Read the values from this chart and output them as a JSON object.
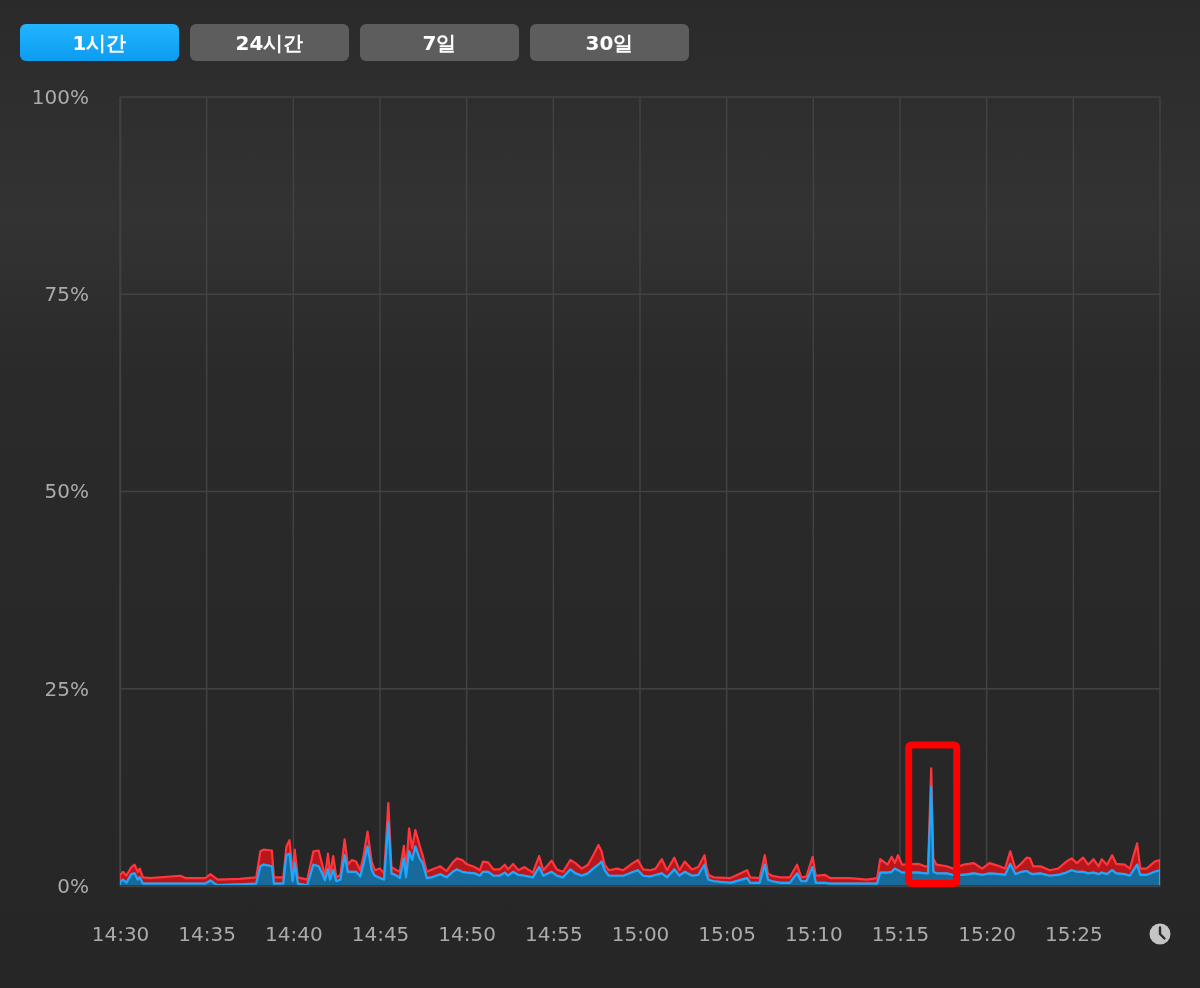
{
  "chart_data": {
    "type": "area",
    "stacked": true,
    "annotations": [
      "1시간",
      "24시간",
      "7일",
      "30일"
    ],
    "xlim": [
      14.5,
      15.5
    ],
    "xticks": [
      {
        "value": 14.5,
        "label": "14:30"
      },
      {
        "value": 14.5833,
        "label": "14:35"
      },
      {
        "value": 14.6667,
        "label": "14:40"
      },
      {
        "value": 14.75,
        "label": "14:45"
      },
      {
        "value": 14.8333,
        "label": "14:50"
      },
      {
        "value": 14.9167,
        "label": "14:55"
      },
      {
        "value": 15,
        "label": "15:00"
      },
      {
        "value": 15.0833,
        "label": "15:05"
      },
      {
        "value": 15.1667,
        "label": "15:10"
      },
      {
        "value": 15.25,
        "label": "15:15"
      },
      {
        "value": 15.3333,
        "label": "15:20"
      },
      {
        "value": 15.4167,
        "label": "15:25"
      },
      {
        "value": 15.5,
        "label": null
      }
    ],
    "ylim": [
      0,
      100
    ],
    "yticks": [
      {
        "value": 0,
        "label": "0%"
      },
      {
        "value": 25,
        "label": "25%"
      },
      {
        "value": 50,
        "label": "50%"
      },
      {
        "value": 75,
        "label": "75%"
      },
      {
        "value": 100,
        "label": "100%"
      }
    ],
    "grid": true,
    "x": [
      14.5,
      14.503,
      14.506,
      14.511,
      14.514,
      14.517,
      14.519,
      14.522,
      14.529,
      14.558,
      14.563,
      14.582,
      14.587,
      14.591,
      14.594,
      14.615,
      14.631,
      14.635,
      14.638,
      14.646,
      14.648,
      14.657,
      14.66,
      14.663,
      14.666,
      14.668,
      14.671,
      14.68,
      14.686,
      14.691,
      14.695,
      14.697,
      14.7,
      14.702,
      14.705,
      14.708,
      14.712,
      14.716,
      14.719,
      14.723,
      14.727,
      14.731,
      14.734,
      14.738,
      14.742,
      14.745,
      14.75,
      14.754,
      14.758,
      14.761,
      14.766,
      14.769,
      14.773,
      14.775,
      14.778,
      14.781,
      14.784,
      14.788,
      14.791,
      14.795,
      14.8,
      14.808,
      14.814,
      14.82,
      14.824,
      14.829,
      14.833,
      14.841,
      14.846,
      14.849,
      14.854,
      14.859,
      14.865,
      14.87,
      14.873,
      14.878,
      14.883,
      14.889,
      14.897,
      14.903,
      14.907,
      14.915,
      14.92,
      14.926,
      14.933,
      14.938,
      14.944,
      14.95,
      14.955,
      14.96,
      14.963,
      14.966,
      14.97,
      14.978,
      14.984,
      14.992,
      14.998,
      15.003,
      15.01,
      15.015,
      15.021,
      15.026,
      15.033,
      15.038,
      15.043,
      15.05,
      15.056,
      15.062,
      15.064,
      15.066,
      15.071,
      15.087,
      15.103,
      15.106,
      15.115,
      15.12,
      15.123,
      15.127,
      15.135,
      15.144,
      15.151,
      15.155,
      15.16,
      15.166,
      15.169,
      15.178,
      15.183,
      15.202,
      15.218,
      15.228,
      15.231,
      15.238,
      15.242,
      15.245,
      15.248,
      15.252,
      15.268,
      15.274,
      15.277,
      15.28,
      15.282,
      15.285,
      15.295,
      15.301,
      15.311,
      15.321,
      15.329,
      15.336,
      15.346,
      15.351,
      15.356,
      15.361,
      15.367,
      15.372,
      15.375,
      15.378,
      15.385,
      15.394,
      15.402,
      15.41,
      15.415,
      15.42,
      15.426,
      15.431,
      15.436,
      15.441,
      15.444,
      15.449,
      15.454,
      15.458,
      15.466,
      15.471,
      15.478,
      15.481,
      15.487,
      15.495,
      15.5
    ],
    "series": [
      {
        "color": "#186a9b",
        "values": [
          0.5,
          0.8,
          0.4,
          1.5,
          1.6,
          0.8,
          1.1,
          0.3,
          0.3,
          0.3,
          0.3,
          0.3,
          0.7,
          0.3,
          0.1,
          0.2,
          0.3,
          2.5,
          2.7,
          2.5,
          0.3,
          0.3,
          3.9,
          4.1,
          0.6,
          2.9,
          0.3,
          0.1,
          2.7,
          2.5,
          1.4,
          0.7,
          2.1,
          0.8,
          2.0,
          0.6,
          0.8,
          3.9,
          1.8,
          1.8,
          1.8,
          1.2,
          2.7,
          5.0,
          2.0,
          1.3,
          1.0,
          0.8,
          8.1,
          1.6,
          1.3,
          1.0,
          3.5,
          1.1,
          4.4,
          3.3,
          5.0,
          3.5,
          2.9,
          1.0,
          1.1,
          1.5,
          1.1,
          1.8,
          2.1,
          1.8,
          1.7,
          1.6,
          1.3,
          1.8,
          1.8,
          1.3,
          1.3,
          1.7,
          1.3,
          1.8,
          1.4,
          1.3,
          1.1,
          2.4,
          1.3,
          1.8,
          1.3,
          1.1,
          2.1,
          1.6,
          1.3,
          1.6,
          2.2,
          2.7,
          3.1,
          2.0,
          1.3,
          1.3,
          1.3,
          1.7,
          2.0,
          1.3,
          1.2,
          1.4,
          1.6,
          1.1,
          2.1,
          1.3,
          1.8,
          1.3,
          1.4,
          2.7,
          1.4,
          0.8,
          0.6,
          0.4,
          1.0,
          0.4,
          0.4,
          2.7,
          0.8,
          0.6,
          0.4,
          0.4,
          1.6,
          0.6,
          0.6,
          2.4,
          0.4,
          0.4,
          0.3,
          0.3,
          0.3,
          0.3,
          1.7,
          1.7,
          1.8,
          2.2,
          2.0,
          1.7,
          1.7,
          1.6,
          1.6,
          12.6,
          1.8,
          1.6,
          1.6,
          1.4,
          1.4,
          1.6,
          1.4,
          1.6,
          1.5,
          1.4,
          2.8,
          1.5,
          1.8,
          1.9,
          1.6,
          1.5,
          1.6,
          1.3,
          1.4,
          1.7,
          2.0,
          1.8,
          1.8,
          1.6,
          1.7,
          1.5,
          1.7,
          1.5,
          2.0,
          1.6,
          1.5,
          1.3,
          2.7,
          1.4,
          1.4,
          1.8,
          2.0
        ]
      },
      {
        "color": "#b8171c",
        "values": [
          0.9,
          1.0,
          0.9,
          0.9,
          1.1,
          1.0,
          1.1,
          0.8,
          0.7,
          1.0,
          0.7,
          0.7,
          0.8,
          0.8,
          0.7,
          0.7,
          0.8,
          1.9,
          1.9,
          2.0,
          0.8,
          0.8,
          1.1,
          1.7,
          0.8,
          1.7,
          0.8,
          0.7,
          1.7,
          2.0,
          1.0,
          0.4,
          2.0,
          0.6,
          1.8,
          0.5,
          0.6,
          2.0,
          0.9,
          1.5,
          1.3,
          0.8,
          1.0,
          1.9,
          1.1,
          0.7,
          1.2,
          0.8,
          2.4,
          0.8,
          0.7,
          0.8,
          1.6,
          0.9,
          2.9,
          1.5,
          2.1,
          1.7,
          1.0,
          0.8,
          1.0,
          1.0,
          0.8,
          1.2,
          1.4,
          1.5,
          1.1,
          0.8,
          0.7,
          1.3,
          1.2,
          0.8,
          0.8,
          1.0,
          0.8,
          1.0,
          0.6,
          1.1,
          0.6,
          1.4,
          0.7,
          1.4,
          0.8,
          0.7,
          1.2,
          1.3,
          0.9,
          1.1,
          1.7,
          2.5,
          1.3,
          0.7,
          0.7,
          0.9,
          0.7,
          1.1,
          1.3,
          0.8,
          0.8,
          0.8,
          1.8,
          0.9,
          1.5,
          0.7,
          1.3,
          0.8,
          1.0,
          1.2,
          1.0,
          0.6,
          0.5,
          0.6,
          1.0,
          0.7,
          0.6,
          1.2,
          0.8,
          0.7,
          0.7,
          0.7,
          1.1,
          0.5,
          0.6,
          1.3,
          0.9,
          1.0,
          0.7,
          0.7,
          0.5,
          0.7,
          1.7,
          1.0,
          1.9,
          0.7,
          1.9,
          1.0,
          1.1,
          0.9,
          0.9,
          2.3,
          1.7,
          1.1,
          0.9,
          0.8,
          1.3,
          1.3,
          0.8,
          1.3,
          1.0,
          0.8,
          1.6,
          0.7,
          1.1,
          1.7,
          1.9,
          1.0,
          0.9,
          0.7,
          0.8,
          1.4,
          1.5,
          1.1,
          1.8,
          1.1,
          1.7,
          1.0,
          1.7,
          1.2,
          1.9,
          1.2,
          1.2,
          0.9,
          2.7,
          0.8,
          0.8,
          1.3,
          1.3
        ]
      }
    ]
  }
}
